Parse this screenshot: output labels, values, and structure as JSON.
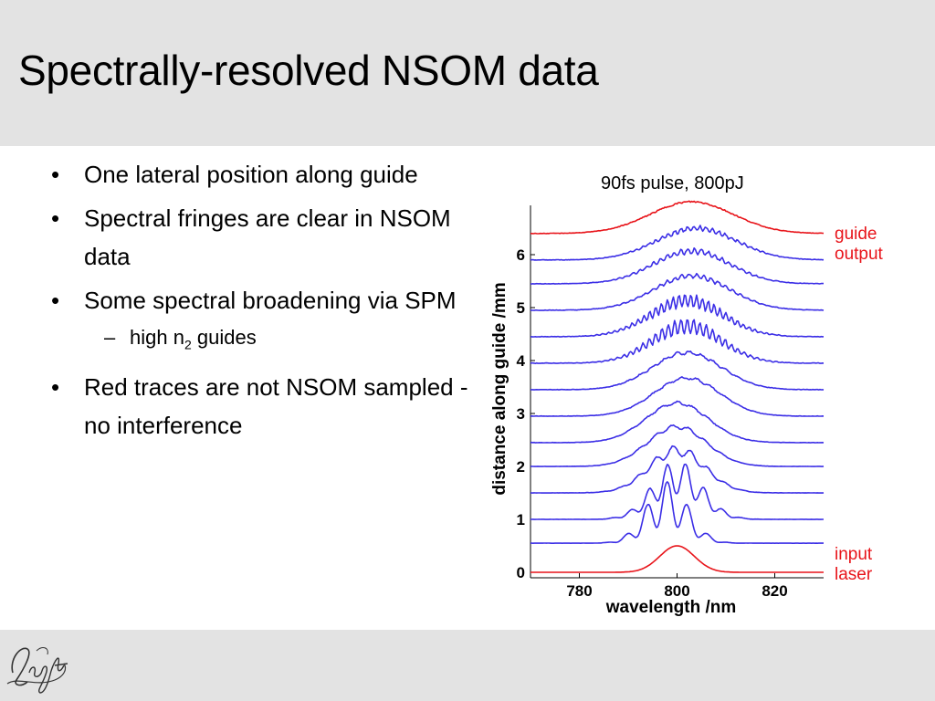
{
  "slide": {
    "title": "Spectrally-resolved NSOM data",
    "bullets": [
      {
        "text": "One lateral position along guide"
      },
      {
        "text": "Spectral fringes are clear in NSOM data"
      },
      {
        "text": "Some spectral broadening via SPM",
        "sub": {
          "prefix": "high n",
          "subscript": "2",
          "suffix": " guides"
        }
      },
      {
        "text": "Red traces are not NSOM sampled - no interference"
      }
    ],
    "bullet_glyph": "•",
    "dash_glyph": "–",
    "logo_icon": "light-script-logo"
  },
  "chart_data": {
    "type": "line",
    "title": "90fs pulse, 800pJ",
    "xlabel": "wavelength /nm",
    "ylabel": "distance along guide /mm",
    "xlim": [
      770,
      830
    ],
    "ylim": [
      0,
      6.6
    ],
    "xticks": [
      780,
      800,
      820
    ],
    "yticks": [
      0,
      1,
      2,
      3,
      4,
      5,
      6
    ],
    "grid": false,
    "colors": {
      "input": "#e8141a",
      "nsom": "#3b2ee6",
      "output": "#e8141a"
    },
    "annotations": [
      {
        "text": [
          "guide",
          "output"
        ],
        "color": "#e8141a",
        "trace": "output"
      },
      {
        "text": [
          "input",
          "laser"
        ],
        "color": "#e8141a",
        "trace": "input"
      }
    ],
    "series": [
      {
        "role": "input",
        "baseline": 0.0,
        "center": 800,
        "width": 5,
        "amp": 0.5,
        "fringe_amp": 0,
        "fringe_period": 4,
        "noise": 0
      },
      {
        "role": "nsom",
        "baseline": 0.55,
        "center": 798,
        "width": 6,
        "amp": 0.75,
        "fringe_amp": 0.55,
        "fringe_period": 4.2,
        "noise": 0.01
      },
      {
        "role": "nsom",
        "baseline": 1.0,
        "center": 800,
        "width": 7,
        "amp": 0.8,
        "fringe_amp": 0.4,
        "fringe_period": 3.8,
        "noise": 0.015
      },
      {
        "role": "nsom",
        "baseline": 1.5,
        "center": 800,
        "width": 8,
        "amp": 0.8,
        "fringe_amp": 0.12,
        "fringe_period": 3.6,
        "noise": 0.015
      },
      {
        "role": "nsom",
        "baseline": 2.0,
        "center": 800,
        "width": 8.5,
        "amp": 0.75,
        "fringe_amp": 0.05,
        "fringe_period": 3.4,
        "noise": 0.015
      },
      {
        "role": "nsom",
        "baseline": 2.45,
        "center": 800,
        "width": 9,
        "amp": 0.75,
        "fringe_amp": 0.03,
        "fringe_period": 3.2,
        "noise": 0.02
      },
      {
        "role": "nsom",
        "baseline": 2.95,
        "center": 802,
        "width": 9.5,
        "amp": 0.72,
        "fringe_amp": 0.03,
        "fringe_period": 3,
        "noise": 0.02
      },
      {
        "role": "nsom",
        "baseline": 3.45,
        "center": 802,
        "width": 10,
        "amp": 0.7,
        "fringe_amp": 0.04,
        "fringe_period": 2.5,
        "noise": 0.025
      },
      {
        "role": "nsom",
        "baseline": 3.95,
        "center": 802,
        "width": 10,
        "amp": 0.7,
        "fringe_amp": 0.2,
        "fringe_period": 1.3,
        "noise": 0.03
      },
      {
        "role": "nsom",
        "baseline": 4.45,
        "center": 802,
        "width": 10.5,
        "amp": 0.68,
        "fringe_amp": 0.18,
        "fringe_period": 1.2,
        "noise": 0.03
      },
      {
        "role": "nsom",
        "baseline": 4.95,
        "center": 803,
        "width": 11,
        "amp": 0.65,
        "fringe_amp": 0.06,
        "fringe_period": 1.5,
        "noise": 0.03
      },
      {
        "role": "nsom",
        "baseline": 5.45,
        "center": 803,
        "width": 11,
        "amp": 0.62,
        "fringe_amp": 0.08,
        "fringe_period": 1.4,
        "noise": 0.03
      },
      {
        "role": "nsom",
        "baseline": 5.9,
        "center": 804,
        "width": 11.5,
        "amp": 0.6,
        "fringe_amp": 0.07,
        "fringe_period": 1.3,
        "noise": 0.03
      },
      {
        "role": "output",
        "baseline": 6.4,
        "center": 803,
        "width": 12,
        "amp": 0.6,
        "fringe_amp": 0,
        "fringe_period": 1,
        "noise": 0.025
      }
    ]
  }
}
